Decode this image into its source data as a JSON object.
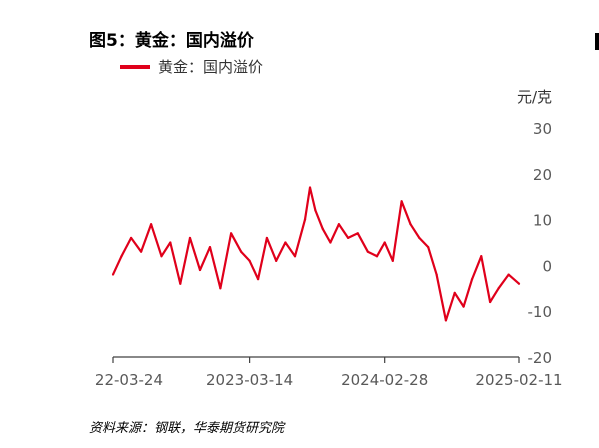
{
  "header": {
    "title": "图5：黄金：国内溢价",
    "source": "资料来源：钢联，华泰期货研究院"
  },
  "chart_data": {
    "type": "line",
    "title": "图5：黄金：国内溢价",
    "ylabel": "元/克",
    "xlabel": "",
    "ylim": [
      -20,
      30
    ],
    "yticks": [
      30,
      20,
      10,
      0,
      -10,
      -20
    ],
    "x_range": [
      "2022-03-24",
      "2025-02-11"
    ],
    "xticks": [
      "2022-03-24",
      "2023-03-14",
      "2024-02-28",
      "2025-02-11"
    ],
    "xtick_labels": [
      "22-03-24",
      "2023-03-14",
      "2024-02-28",
      "2025-02-11"
    ],
    "grid": false,
    "legend_position": "top-left",
    "series": [
      {
        "name": "黄金：国内溢价",
        "color": "#e0001b",
        "x": [
          "2022-03-24",
          "2022-04-15",
          "2022-05-10",
          "2022-06-05",
          "2022-07-01",
          "2022-07-28",
          "2022-08-20",
          "2022-09-15",
          "2022-10-10",
          "2022-11-05",
          "2022-12-01",
          "2022-12-28",
          "2023-01-25",
          "2023-02-20",
          "2023-03-14",
          "2023-04-05",
          "2023-04-28",
          "2023-05-22",
          "2023-06-15",
          "2023-07-10",
          "2023-08-05",
          "2023-08-18",
          "2023-09-01",
          "2023-09-20",
          "2023-10-10",
          "2023-11-01",
          "2023-11-25",
          "2023-12-20",
          "2024-01-15",
          "2024-02-08",
          "2024-02-28",
          "2024-03-20",
          "2024-04-12",
          "2024-05-05",
          "2024-05-28",
          "2024-06-20",
          "2024-07-12",
          "2024-08-05",
          "2024-08-28",
          "2024-09-20",
          "2024-10-12",
          "2024-11-05",
          "2024-11-28",
          "2024-12-20",
          "2025-01-15",
          "2025-02-11"
        ],
        "values": [
          -2,
          2,
          6,
          3,
          9,
          2,
          5,
          -4,
          6,
          -1,
          4,
          -5,
          7,
          3,
          1,
          -3,
          6,
          1,
          5,
          2,
          10,
          17,
          12,
          8,
          5,
          9,
          6,
          7,
          3,
          2,
          5,
          1,
          14,
          9,
          6,
          4,
          -2,
          -12,
          -6,
          -9,
          -3,
          2,
          -8,
          -5,
          -2,
          -4
        ]
      }
    ]
  }
}
